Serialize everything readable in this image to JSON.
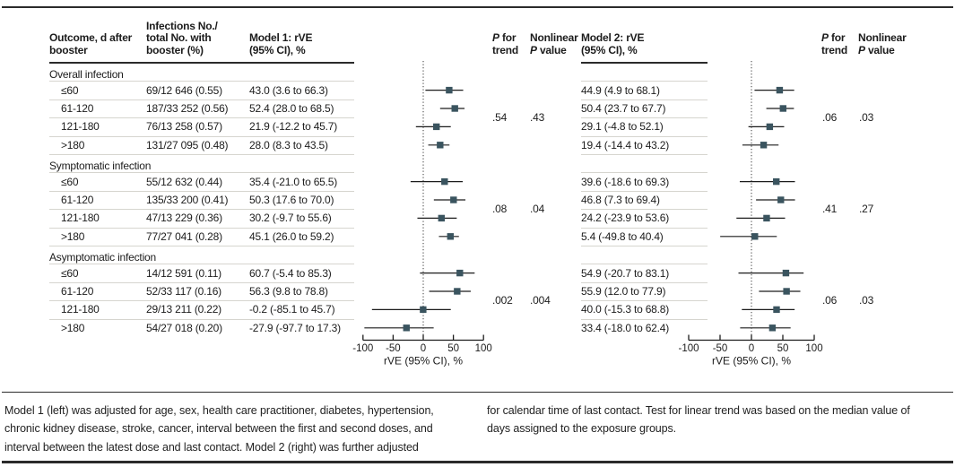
{
  "table": {
    "headers": {
      "outcome": "Outcome, d after\nbooster",
      "infections": "Infections No./\ntotal No. with\nbooster (%)",
      "model1": "Model 1: rVE\n(95% CI), %",
      "p_trend": "P for\ntrend",
      "nonlinear": "Nonlinear\nP value",
      "model2": "Model 2: rVE\n(95% CI), %"
    },
    "sections": [
      {
        "label": "Overall infection",
        "rows": [
          {
            "outcome": "≤60",
            "infections": "69/12 646 (0.55)",
            "model1": "43.0 (3.6 to 66.3)",
            "model2": "44.9 (4.9 to 68.1)"
          },
          {
            "outcome": "61-120",
            "infections": "187/33 252 (0.56)",
            "model1": "52.4 (28.0 to 68.5)",
            "model2": "50.4 (23.7 to 67.7)"
          },
          {
            "outcome": "121-180",
            "infections": "76/13 258 (0.57)",
            "model1": "21.9 (-12.2 to 45.7)",
            "model2": "29.1 (-4.8 to 52.1)"
          },
          {
            "outcome": ">180",
            "infections": "131/27 095 (0.48)",
            "model1": "28.0 (8.3 to 43.5)",
            "model2": "19.4 (-14.4 to 43.2)"
          }
        ],
        "model1_p_trend": ".54",
        "model1_nonlinear": ".43",
        "model2_p_trend": ".06",
        "model2_nonlinear": ".03"
      },
      {
        "label": "Symptomatic infection",
        "rows": [
          {
            "outcome": "≤60",
            "infections": "55/12 632 (0.44)",
            "model1": "35.4 (-21.0 to 65.5)",
            "model2": "39.6 (-18.6 to 69.3)"
          },
          {
            "outcome": "61-120",
            "infections": "135/33 200 (0.41)",
            "model1": "50.3 (17.6 to 70.0)",
            "model2": "46.8 (7.3 to 69.4)"
          },
          {
            "outcome": "121-180",
            "infections": "47/13 229 (0.36)",
            "model1": "30.2 (-9.7 to 55.6)",
            "model2": "24.2 (-23.9 to 53.6)"
          },
          {
            "outcome": ">180",
            "infections": "77/27 041 (0.28)",
            "model1": "45.1 (26.0 to 59.2)",
            "model2": "5.4 (-49.8 to 40.4)"
          }
        ],
        "model1_p_trend": ".08",
        "model1_nonlinear": ".04",
        "model2_p_trend": ".41",
        "model2_nonlinear": ".27"
      },
      {
        "label": "Asymptomatic infection",
        "rows": [
          {
            "outcome": "≤60",
            "infections": "14/12 591 (0.11)",
            "model1": "60.7 (-5.4 to 85.3)",
            "model2": "54.9 (-20.7 to 83.1)"
          },
          {
            "outcome": "61-120",
            "infections": "52/33 117 (0.16)",
            "model1": "56.3 (9.8 to 78.8)",
            "model2": "55.9 (12.0 to 77.9)"
          },
          {
            "outcome": "121-180",
            "infections": "29/13 211 (0.22)",
            "model1": "-0.2 (-85.1 to 45.7)",
            "model2": "40.0 (-15.3 to 68.8)"
          },
          {
            "outcome": ">180",
            "infections": "54/27 018 (0.20)",
            "model1": "-27.9 (-97.7 to 17.3)",
            "model2": "33.4 (-18.0 to 62.4)"
          }
        ],
        "model1_p_trend": ".002",
        "model1_nonlinear": ".004",
        "model2_p_trend": ".06",
        "model2_nonlinear": ".03"
      }
    ]
  },
  "chart_data": [
    {
      "type": "forest",
      "title": "Model 1: rVE (95% CI), %",
      "xlabel": "rVE (95% CI), %",
      "xlim": [
        -100,
        100
      ],
      "xticks": [
        -100,
        -50,
        0,
        50,
        100
      ],
      "reference_line": 0,
      "groups": [
        {
          "group": "Overall infection",
          "points": [
            {
              "label": "≤60",
              "est": 43.0,
              "lo": 3.6,
              "hi": 66.3
            },
            {
              "label": "61-120",
              "est": 52.4,
              "lo": 28.0,
              "hi": 68.5
            },
            {
              "label": "121-180",
              "est": 21.9,
              "lo": -12.2,
              "hi": 45.7
            },
            {
              "label": ">180",
              "est": 28.0,
              "lo": 8.3,
              "hi": 43.5
            }
          ],
          "p_for_trend": ".54",
          "nonlinear_p": ".43"
        },
        {
          "group": "Symptomatic infection",
          "points": [
            {
              "label": "≤60",
              "est": 35.4,
              "lo": -21.0,
              "hi": 65.5
            },
            {
              "label": "61-120",
              "est": 50.3,
              "lo": 17.6,
              "hi": 70.0
            },
            {
              "label": "121-180",
              "est": 30.2,
              "lo": -9.7,
              "hi": 55.6
            },
            {
              "label": ">180",
              "est": 45.1,
              "lo": 26.0,
              "hi": 59.2
            }
          ],
          "p_for_trend": ".08",
          "nonlinear_p": ".04"
        },
        {
          "group": "Asymptomatic infection",
          "points": [
            {
              "label": "≤60",
              "est": 60.7,
              "lo": -5.4,
              "hi": 85.3
            },
            {
              "label": "61-120",
              "est": 56.3,
              "lo": 9.8,
              "hi": 78.8
            },
            {
              "label": "121-180",
              "est": -0.2,
              "lo": -85.1,
              "hi": 45.7
            },
            {
              "label": ">180",
              "est": -27.9,
              "lo": -97.7,
              "hi": 17.3
            }
          ],
          "p_for_trend": ".002",
          "nonlinear_p": ".004"
        }
      ]
    },
    {
      "type": "forest",
      "title": "Model 2: rVE (95% CI), %",
      "xlabel": "rVE (95% CI), %",
      "xlim": [
        -100,
        100
      ],
      "xticks": [
        -100,
        -50,
        0,
        50,
        100
      ],
      "reference_line": 0,
      "groups": [
        {
          "group": "Overall infection",
          "points": [
            {
              "label": "≤60",
              "est": 44.9,
              "lo": 4.9,
              "hi": 68.1
            },
            {
              "label": "61-120",
              "est": 50.4,
              "lo": 23.7,
              "hi": 67.7
            },
            {
              "label": "121-180",
              "est": 29.1,
              "lo": -4.8,
              "hi": 52.1
            },
            {
              "label": ">180",
              "est": 19.4,
              "lo": -14.4,
              "hi": 43.2
            }
          ],
          "p_for_trend": ".06",
          "nonlinear_p": ".03"
        },
        {
          "group": "Symptomatic infection",
          "points": [
            {
              "label": "≤60",
              "est": 39.6,
              "lo": -18.6,
              "hi": 69.3
            },
            {
              "label": "61-120",
              "est": 46.8,
              "lo": 7.3,
              "hi": 69.4
            },
            {
              "label": "121-180",
              "est": 24.2,
              "lo": -23.9,
              "hi": 53.6
            },
            {
              "label": ">180",
              "est": 5.4,
              "lo": -49.8,
              "hi": 40.4
            }
          ],
          "p_for_trend": ".41",
          "nonlinear_p": ".27"
        },
        {
          "group": "Asymptomatic infection",
          "points": [
            {
              "label": "≤60",
              "est": 54.9,
              "lo": -20.7,
              "hi": 83.1
            },
            {
              "label": "61-120",
              "est": 55.9,
              "lo": 12.0,
              "hi": 77.9
            },
            {
              "label": "121-180",
              "est": 40.0,
              "lo": -15.3,
              "hi": 68.8
            },
            {
              "label": ">180",
              "est": 33.4,
              "lo": -18.0,
              "hi": 62.4
            }
          ],
          "p_for_trend": ".06",
          "nonlinear_p": ".03"
        }
      ]
    }
  ],
  "footnotes": {
    "left": "Model 1 (left) was adjusted for age, sex, health care practitioner, diabetes, hypertension,\nchronic kidney disease, stroke, cancer, interval between the first and second doses, and\ninterval between the latest dose and last contact. Model 2 (right) was further adjusted",
    "right": "for calendar time of last contact. Test for linear trend was based on the median value of\ndays assigned to the exposure groups."
  },
  "colors": {
    "marker": "#3a545f",
    "ci_line": "#1c1c1c",
    "dark_rule": "#2b2b2b",
    "light_rule": "#d6d5cf",
    "text": "#1c1c1c"
  }
}
